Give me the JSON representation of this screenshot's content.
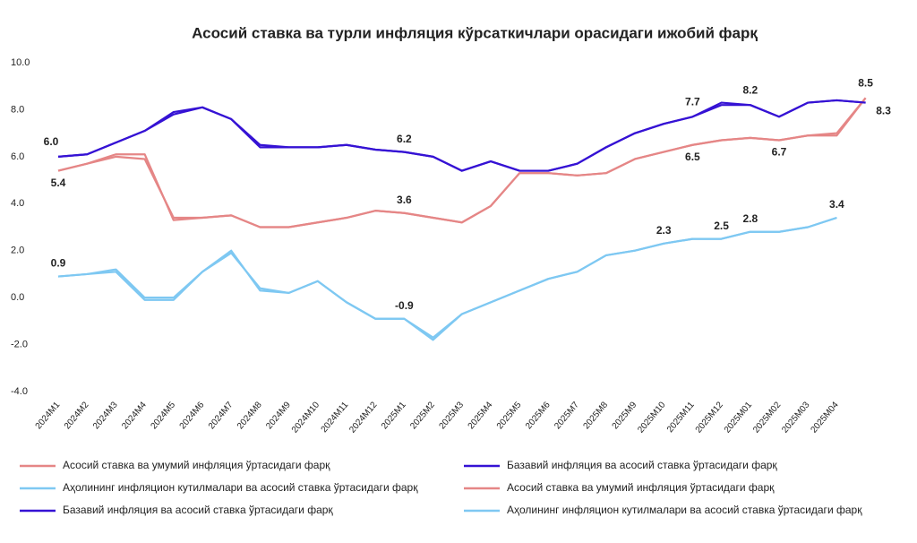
{
  "chart_data": {
    "type": "line",
    "title": "Асосий ставка ва турли инфляция кўрсаткичлари орасидаги ижобий фарқ",
    "categories": [
      "2024M1",
      "2024M2",
      "2024M3",
      "2024M4",
      "2024M5",
      "2024M6",
      "2024M7",
      "2024M8",
      "2024M9",
      "2024M10",
      "2024M11",
      "2024M12",
      "2025M1",
      "2025M2",
      "2025M3",
      "2025M4",
      "2025M5",
      "2025M6",
      "2025M7",
      "2025M8",
      "2025M9",
      "2025M10",
      "2025M11",
      "2025M12",
      "2025M01",
      "2025M02",
      "2025M03",
      "2025M04",
      null
    ],
    "ylim": [
      -4,
      10
    ],
    "yticks": [
      {
        "value": -4,
        "label": "-4.0"
      },
      {
        "value": -2,
        "label": "-2.0"
      },
      {
        "value": 0,
        "label": "0.0"
      },
      {
        "value": 2,
        "label": "2.0"
      },
      {
        "value": 4,
        "label": "4.0"
      },
      {
        "value": 6,
        "label": "6.0"
      },
      {
        "value": 8,
        "label": "8.0"
      },
      {
        "value": 10,
        "label": "10.0"
      }
    ],
    "grid": false,
    "legend": "bottom",
    "series": [
      {
        "name": "Асосий ставка ва умумий инфляция ўртасидаги фарқ",
        "color": "#e58686",
        "values": [
          5.4,
          5.7,
          6.0,
          5.9,
          3.4,
          3.4,
          3.5,
          3.0,
          3.0,
          3.2,
          3.4,
          3.7,
          3.6,
          3.4,
          3.2,
          3.9,
          5.3,
          5.3,
          5.2,
          5.3,
          5.9,
          6.2,
          6.5,
          6.7,
          6.8,
          6.7,
          6.9,
          7.0,
          8.5
        ],
        "value_labels": [
          "5.4",
          null,
          null,
          null,
          null,
          null,
          null,
          null,
          null,
          null,
          null,
          null,
          "3.6",
          null,
          null,
          null,
          null,
          null,
          null,
          null,
          null,
          null,
          "6.5",
          null,
          null,
          "6.7",
          null,
          null,
          "8.5"
        ]
      },
      {
        "name": "Базавий инфляция ва асосий ставка ўртасидаги фарқ",
        "color": "#3512d4",
        "values": [
          6.0,
          6.1,
          6.6,
          7.1,
          7.9,
          8.1,
          7.6,
          6.5,
          6.4,
          6.4,
          6.5,
          6.3,
          6.2,
          6.0,
          5.4,
          5.8,
          5.4,
          5.4,
          5.7,
          6.4,
          7.0,
          7.4,
          7.7,
          8.3,
          8.2,
          7.7,
          8.3,
          8.4,
          8.3
        ],
        "value_labels": [
          "6.0",
          null,
          null,
          null,
          null,
          null,
          null,
          null,
          null,
          null,
          null,
          null,
          "6.2",
          null,
          null,
          null,
          null,
          null,
          null,
          null,
          null,
          null,
          "7.7",
          null,
          "8.2",
          null,
          null,
          null,
          "8.3"
        ]
      },
      {
        "name": "Аҳолининг инфляцион кутилмалари ва асосий ставка ўртасидаги фарқ",
        "color": "#7ec8f2",
        "values": [
          0.9,
          1.0,
          1.2,
          0.0,
          0.0,
          1.1,
          1.9,
          0.4,
          0.2,
          0.7,
          -0.2,
          -0.9,
          -0.9,
          -1.8,
          -0.7,
          -0.2,
          0.3,
          0.8,
          1.1,
          1.8,
          2.0,
          2.3,
          2.5,
          2.5,
          2.8,
          2.8,
          3.0,
          3.4,
          null
        ],
        "value_labels": [
          "0.9",
          null,
          null,
          null,
          null,
          null,
          null,
          null,
          null,
          null,
          null,
          null,
          "-0.9",
          null,
          null,
          null,
          null,
          null,
          null,
          null,
          null,
          "2.3",
          null,
          "2.5",
          "2.8",
          null,
          null,
          "3.4",
          null
        ]
      },
      {
        "name": "Асосий ставка ва умумий инфляция ўртасидаги фарқ",
        "color": "#e58686",
        "values": [
          5.4,
          5.7,
          6.1,
          6.1,
          3.3,
          3.4,
          3.5,
          3.0,
          3.0,
          3.2,
          3.4,
          3.7,
          3.6,
          3.4,
          3.2,
          3.9,
          5.3,
          5.3,
          5.2,
          5.3,
          5.9,
          6.2,
          6.5,
          6.7,
          6.8,
          6.7,
          6.9,
          6.9,
          8.5
        ]
      },
      {
        "name": "Базавий инфляция ва асосий ставка ўртасидаги фарқ",
        "color": "#3512d4",
        "values": [
          6.0,
          6.1,
          6.6,
          7.1,
          7.8,
          8.1,
          7.6,
          6.4,
          6.4,
          6.4,
          6.5,
          6.3,
          6.2,
          6.0,
          5.4,
          5.8,
          5.4,
          5.4,
          5.7,
          6.4,
          7.0,
          7.4,
          7.7,
          8.2,
          8.2,
          7.7,
          8.3,
          8.4,
          8.3
        ]
      },
      {
        "name": "Аҳолининг инфляцион кутилмалари ва асосий ставка ўртасидаги фарқ",
        "color": "#7ec8f2",
        "values": [
          0.9,
          1.0,
          1.1,
          -0.1,
          -0.1,
          1.1,
          2.0,
          0.3,
          0.2,
          0.7,
          -0.2,
          -0.9,
          -0.9,
          -1.7,
          -0.7,
          -0.2,
          0.3,
          0.8,
          1.1,
          1.8,
          2.0,
          2.3,
          2.5,
          2.5,
          2.8,
          2.8,
          3.0,
          3.4,
          null
        ]
      }
    ]
  }
}
